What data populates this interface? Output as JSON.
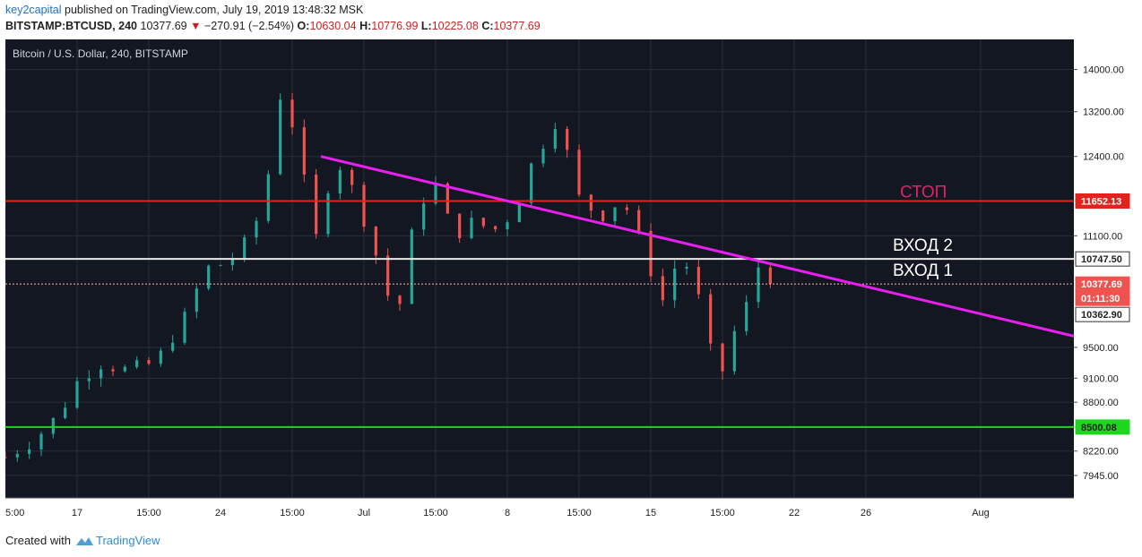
{
  "header": {
    "author": "key2capital",
    "published_text": " published on TradingView.com, July 19, 2019 13:48:32 MSK",
    "symbol": "BITSTAMP:BTCUSD, 240",
    "last": "10377.69",
    "change_arrow": "▼",
    "change": "−270.91 (−2.54%)",
    "o_label": "O:",
    "o_value": "10630.04",
    "h_label": "H:",
    "h_value": "10776.99",
    "l_label": "L:",
    "l_value": "10225.08",
    "c_label": "C:",
    "c_value": "10377.69"
  },
  "footer": {
    "created_with": "Created with",
    "brand": "TradingView",
    "logo_icon": "tradingview-cloud-icon"
  },
  "colors": {
    "background": "#131722",
    "grid": "#2a2e39",
    "up": "#26a69a",
    "down": "#ef5350",
    "trendline": "#e91ef0",
    "stop_line": "#e0231c",
    "support_line": "#1ed61e",
    "entry_line": "#e8e8e8"
  },
  "chart_data": {
    "type": "candlestick",
    "title": "Bitcoin / U.S. Dollar, 240, BITSTAMP",
    "y_scale": "log",
    "ylim": [
      7700,
      14600
    ],
    "y_ticks": [
      14000,
      13200,
      12400,
      11100,
      9500,
      9100,
      8800,
      8220,
      7945
    ],
    "y_tick_labels": [
      "14000.00",
      "13200.00",
      "12400.00",
      "11100.00",
      "9500.00",
      "9100.00",
      "8800.00",
      "8220.00",
      "7945.00"
    ],
    "x_ticks": [
      {
        "day": 0.0,
        "label": "5:00"
      },
      {
        "day": 1.0,
        "label": "17"
      },
      {
        "day": 2.0,
        "label": "15:00"
      },
      {
        "day": 3.0,
        "label": "24"
      },
      {
        "day": 4.0,
        "label": "15:00"
      },
      {
        "day": 5.0,
        "label": "Jul"
      },
      {
        "day": 6.0,
        "label": "15:00"
      },
      {
        "day": 7.0,
        "label": "8"
      },
      {
        "day": 8.0,
        "label": "15:00"
      },
      {
        "day": 9.0,
        "label": "15"
      },
      {
        "day": 10.0,
        "label": "15:00"
      },
      {
        "day": 11.0,
        "label": "22"
      },
      {
        "day": 12.0,
        "label": "26"
      },
      {
        "day": 13.6,
        "label": "Aug"
      }
    ],
    "x_range": [
      0,
      14.9
    ],
    "price_path": [
      [
        0.0,
        8150
      ],
      [
        0.4,
        8350
      ],
      [
        0.75,
        8650
      ],
      [
        1.0,
        9050
      ],
      [
        1.3,
        9300
      ],
      [
        1.7,
        9200
      ],
      [
        2.1,
        9300
      ],
      [
        2.5,
        9900
      ],
      [
        2.8,
        10600
      ],
      [
        3.1,
        10700
      ],
      [
        3.45,
        11100
      ],
      [
        3.75,
        12500
      ],
      [
        3.85,
        13700
      ],
      [
        4.1,
        12500
      ],
      [
        4.3,
        10900
      ],
      [
        4.6,
        12400
      ],
      [
        4.9,
        11700
      ],
      [
        5.2,
        10700
      ],
      [
        5.45,
        9800
      ],
      [
        5.75,
        11600
      ],
      [
        6.0,
        11900
      ],
      [
        6.25,
        11100
      ],
      [
        6.5,
        11300
      ],
      [
        6.85,
        11200
      ],
      [
        7.1,
        11500
      ],
      [
        7.35,
        12300
      ],
      [
        7.7,
        13100
      ],
      [
        7.8,
        12600
      ],
      [
        8.0,
        11700
      ],
      [
        8.3,
        11400
      ],
      [
        8.6,
        11700
      ],
      [
        8.9,
        10900
      ],
      [
        9.15,
        10100
      ],
      [
        9.4,
        10800
      ],
      [
        9.6,
        10500
      ],
      [
        9.8,
        9500
      ],
      [
        10.0,
        9200
      ],
      [
        10.15,
        9700
      ],
      [
        10.3,
        9750
      ],
      [
        10.4,
        10700
      ],
      [
        10.55,
        10600
      ],
      [
        10.65,
        10377
      ]
    ],
    "levels": [
      {
        "name": "stop",
        "value": 11652.13,
        "label": "11652.13",
        "text": "СТОП"
      },
      {
        "name": "entry-2",
        "value": 10747.5,
        "label": "10747.50",
        "text": "ВХОД 2"
      },
      {
        "name": "entry-1",
        "value": 10377.69,
        "label": "10377.69",
        "text": "ВХОД 1"
      },
      {
        "name": "support",
        "value": 8500.08,
        "label": "8500.08",
        "text": ""
      }
    ],
    "countdown_label": "01:11:30",
    "bid_label": "10362.90",
    "trendline": {
      "start": [
        4.4,
        12400
      ],
      "end": [
        14.9,
        9650
      ]
    }
  }
}
